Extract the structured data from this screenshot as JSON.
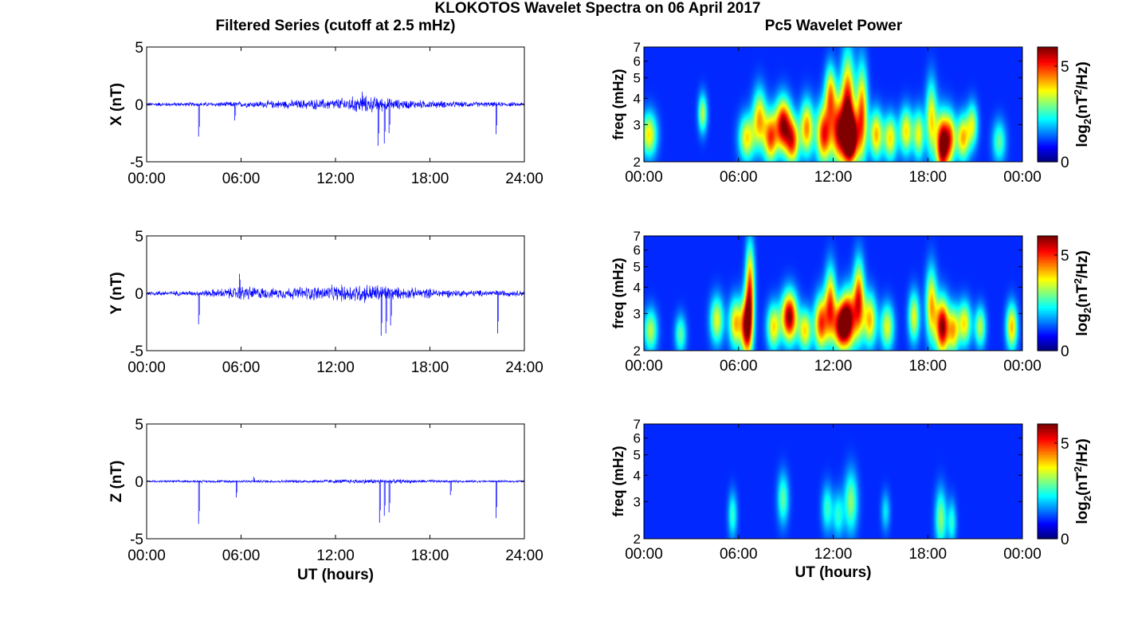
{
  "title": "KLOKOTOS Wavelet Spectra on 06 April 2017",
  "left_title": "Filtered Series (cutoff at 2.5 mHz)",
  "right_title": "Pc5 Wavelet Power",
  "xlabel": "UT (hours)",
  "colors": {
    "trace": "#0000ff",
    "axis": "#000000"
  },
  "chart_data": [
    {
      "type": "line",
      "component": "X",
      "ylabel": "X (nT)",
      "ylim": [
        -5,
        5
      ],
      "yticks": [
        "5",
        "0",
        "-5"
      ],
      "xlim": [
        0,
        24
      ],
      "xticks": [
        "00:00",
        "06:00",
        "12:00",
        "18:00",
        "24:00"
      ],
      "noise_envelope": [
        [
          0,
          0.2
        ],
        [
          3,
          0.2
        ],
        [
          6,
          0.3
        ],
        [
          8,
          0.4
        ],
        [
          10,
          0.5
        ],
        [
          12,
          0.6
        ],
        [
          13.5,
          0.9
        ],
        [
          14.5,
          0.8
        ],
        [
          16,
          0.5
        ],
        [
          18,
          0.4
        ],
        [
          20,
          0.3
        ],
        [
          24,
          0.2
        ]
      ],
      "spikes": [
        {
          "x": 3.3,
          "y": -2.8
        },
        {
          "x": 5.6,
          "y": -1.4
        },
        {
          "x": 14.7,
          "y": -3.6
        },
        {
          "x": 15.1,
          "y": -3.4
        },
        {
          "x": 15.4,
          "y": -2.5
        },
        {
          "x": 22.2,
          "y": -2.6
        },
        {
          "x": 13.7,
          "y": 1.1
        }
      ]
    },
    {
      "type": "line",
      "component": "Y",
      "ylabel": "Y (nT)",
      "ylim": [
        -5,
        5
      ],
      "yticks": [
        "5",
        "0",
        "-5"
      ],
      "xlim": [
        0,
        24
      ],
      "xticks": [
        "00:00",
        "06:00",
        "12:00",
        "18:00",
        "24:00"
      ],
      "noise_envelope": [
        [
          0,
          0.25
        ],
        [
          3,
          0.25
        ],
        [
          5.5,
          0.6
        ],
        [
          6,
          0.8
        ],
        [
          8,
          0.5
        ],
        [
          10,
          0.7
        ],
        [
          12,
          0.8
        ],
        [
          13.5,
          1.0
        ],
        [
          15,
          0.9
        ],
        [
          16,
          0.6
        ],
        [
          18,
          0.5
        ],
        [
          20,
          0.35
        ],
        [
          24,
          0.3
        ]
      ],
      "spikes": [
        {
          "x": 3.3,
          "y": -2.7
        },
        {
          "x": 5.9,
          "y": 1.7
        },
        {
          "x": 14.9,
          "y": -3.7
        },
        {
          "x": 15.2,
          "y": -3.5
        },
        {
          "x": 15.5,
          "y": -2.8
        },
        {
          "x": 22.3,
          "y": -3.5
        }
      ]
    },
    {
      "type": "line",
      "component": "Z",
      "ylabel": "Z (nT)",
      "ylim": [
        -5,
        5
      ],
      "yticks": [
        "5",
        "0",
        "-5"
      ],
      "xlim": [
        0,
        24
      ],
      "xticks": [
        "00:00",
        "06:00",
        "12:00",
        "18:00",
        "24:00"
      ],
      "noise_envelope": [
        [
          0,
          0.1
        ],
        [
          6,
          0.15
        ],
        [
          8,
          0.15
        ],
        [
          12,
          0.2
        ],
        [
          14,
          0.25
        ],
        [
          16,
          0.2
        ],
        [
          20,
          0.12
        ],
        [
          24,
          0.1
        ]
      ],
      "spikes": [
        {
          "x": 3.3,
          "y": -3.7
        },
        {
          "x": 5.7,
          "y": -1.4
        },
        {
          "x": 6.8,
          "y": 0.4
        },
        {
          "x": 14.8,
          "y": -3.6
        },
        {
          "x": 15.1,
          "y": -3.0
        },
        {
          "x": 15.4,
          "y": -2.7
        },
        {
          "x": 19.3,
          "y": -1.2
        },
        {
          "x": 22.2,
          "y": -3.2
        }
      ]
    },
    {
      "type": "heatmap",
      "component": "X",
      "ylabel": "freq (mHz)",
      "yscale": "log",
      "ylim": [
        2,
        7
      ],
      "yticks": [
        "2",
        "3",
        "4",
        "5",
        "6",
        "7"
      ],
      "xlim": [
        0,
        24
      ],
      "xticks": [
        "00:00",
        "06:00",
        "12:00",
        "18:00",
        "00:00"
      ],
      "colorbar": {
        "label_main": "log",
        "label_sub": "2",
        "label_rest": "(nT",
        "label_sup": "2",
        "label_end": "/Hz)",
        "ticks": [
          "5",
          "0"
        ],
        "range": [
          0,
          6
        ]
      },
      "blobs": [
        [
          0.3,
          2.7,
          0.35,
          0.45,
          0.55
        ],
        [
          3.7,
          3.4,
          0.2,
          0.5,
          0.45
        ],
        [
          6.5,
          2.6,
          0.35,
          0.45,
          0.55
        ],
        [
          7.3,
          3.2,
          0.3,
          0.7,
          0.6
        ],
        [
          8.0,
          2.6,
          0.3,
          0.5,
          0.7
        ],
        [
          8.8,
          3.0,
          0.35,
          0.6,
          0.9
        ],
        [
          9.4,
          2.5,
          0.3,
          0.45,
          0.7
        ],
        [
          10.3,
          2.9,
          0.3,
          0.6,
          0.65
        ],
        [
          11.4,
          2.7,
          0.35,
          0.6,
          0.8
        ],
        [
          11.8,
          4.2,
          0.25,
          0.9,
          0.6
        ],
        [
          12.3,
          2.8,
          0.3,
          0.7,
          0.75
        ],
        [
          12.9,
          3.6,
          0.3,
          1.4,
          0.85
        ],
        [
          13.1,
          2.6,
          0.35,
          0.5,
          1.0
        ],
        [
          13.8,
          3.4,
          0.25,
          1.2,
          0.7
        ],
        [
          14.7,
          2.7,
          0.3,
          0.5,
          0.6
        ],
        [
          15.6,
          2.6,
          0.3,
          0.45,
          0.55
        ],
        [
          16.6,
          2.8,
          0.3,
          0.5,
          0.55
        ],
        [
          17.4,
          2.7,
          0.25,
          0.5,
          0.5
        ],
        [
          18.2,
          3.2,
          0.25,
          0.9,
          0.55
        ],
        [
          18.9,
          2.4,
          0.28,
          0.55,
          1.0
        ],
        [
          19.4,
          2.6,
          0.25,
          0.5,
          0.6
        ],
        [
          20.2,
          2.6,
          0.3,
          0.45,
          0.6
        ],
        [
          20.8,
          3.0,
          0.25,
          0.5,
          0.45
        ],
        [
          22.5,
          2.5,
          0.3,
          0.4,
          0.35
        ]
      ]
    },
    {
      "type": "heatmap",
      "component": "Y",
      "ylabel": "freq (mHz)",
      "yscale": "log",
      "ylim": [
        2,
        7
      ],
      "yticks": [
        "2",
        "3",
        "4",
        "5",
        "6",
        "7"
      ],
      "xlim": [
        0,
        24
      ],
      "xticks": [
        "00:00",
        "06:00",
        "12:00",
        "18:00",
        "00:00"
      ],
      "colorbar": {
        "label_main": "log",
        "label_sub": "2",
        "label_rest": "(nT",
        "label_sup": "2",
        "label_end": "/Hz)",
        "ticks": [
          "5",
          "0"
        ],
        "range": [
          0,
          6
        ]
      },
      "blobs": [
        [
          0.4,
          2.5,
          0.3,
          0.4,
          0.45
        ],
        [
          2.3,
          2.4,
          0.25,
          0.35,
          0.35
        ],
        [
          4.6,
          2.8,
          0.3,
          0.5,
          0.5
        ],
        [
          5.8,
          2.7,
          0.3,
          0.5,
          0.6
        ],
        [
          6.5,
          2.6,
          0.25,
          0.6,
          0.9
        ],
        [
          6.7,
          4.0,
          0.2,
          1.3,
          0.7
        ],
        [
          8.2,
          2.6,
          0.3,
          0.45,
          0.55
        ],
        [
          9.2,
          2.9,
          0.35,
          0.55,
          0.95
        ],
        [
          10.2,
          2.5,
          0.3,
          0.4,
          0.55
        ],
        [
          11.2,
          2.7,
          0.3,
          0.55,
          0.75
        ],
        [
          11.8,
          3.3,
          0.25,
          0.9,
          0.7
        ],
        [
          12.4,
          2.6,
          0.3,
          0.45,
          0.7
        ],
        [
          12.9,
          2.8,
          0.35,
          0.6,
          1.0
        ],
        [
          13.6,
          3.5,
          0.25,
          1.0,
          0.75
        ],
        [
          14.3,
          2.8,
          0.3,
          0.55,
          0.6
        ],
        [
          15.4,
          2.6,
          0.3,
          0.45,
          0.5
        ],
        [
          17.1,
          2.9,
          0.25,
          0.55,
          0.5
        ],
        [
          18.2,
          3.3,
          0.25,
          0.9,
          0.6
        ],
        [
          18.9,
          2.6,
          0.3,
          0.55,
          0.95
        ],
        [
          19.6,
          2.5,
          0.25,
          0.45,
          0.55
        ],
        [
          20.3,
          2.7,
          0.3,
          0.45,
          0.55
        ],
        [
          21.3,
          2.6,
          0.25,
          0.4,
          0.45
        ],
        [
          23.3,
          2.6,
          0.25,
          0.45,
          0.6
        ]
      ]
    },
    {
      "type": "heatmap",
      "component": "Z",
      "ylabel": "freq (mHz)",
      "yscale": "log",
      "ylim": [
        2,
        7
      ],
      "yticks": [
        "2",
        "3",
        "4",
        "5",
        "6",
        "7"
      ],
      "xlim": [
        0,
        24
      ],
      "xticks": [
        "00:00",
        "06:00",
        "12:00",
        "18:00",
        "00:00"
      ],
      "colorbar": {
        "label_main": "log",
        "label_sub": "2",
        "label_rest": "(nT",
        "label_sup": "2",
        "label_end": "/Hz)",
        "ticks": [
          "5",
          "0"
        ],
        "range": [
          0,
          6
        ]
      },
      "blobs": [
        [
          5.6,
          2.6,
          0.2,
          0.45,
          0.3
        ],
        [
          8.8,
          3.1,
          0.25,
          0.6,
          0.35
        ],
        [
          11.6,
          2.8,
          0.25,
          0.5,
          0.3
        ],
        [
          12.3,
          2.6,
          0.25,
          0.45,
          0.28
        ],
        [
          13.1,
          3.0,
          0.3,
          0.7,
          0.4
        ],
        [
          15.3,
          2.7,
          0.2,
          0.4,
          0.22
        ],
        [
          18.8,
          2.5,
          0.25,
          0.55,
          0.4
        ],
        [
          19.5,
          2.4,
          0.2,
          0.4,
          0.28
        ]
      ]
    }
  ]
}
